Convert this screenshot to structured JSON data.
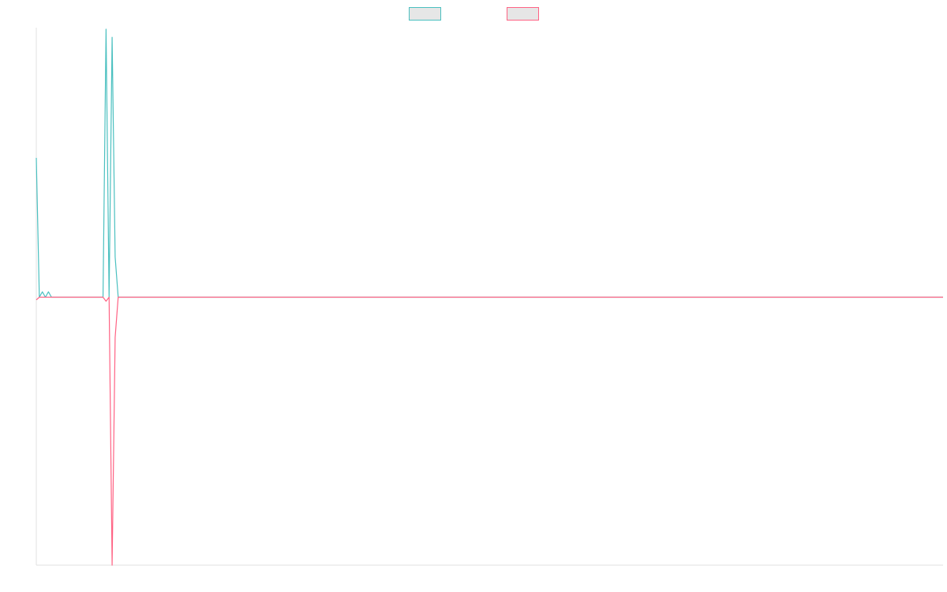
{
  "chart_data": {
    "type": "line",
    "title": "",
    "xlabel": "",
    "ylabel": "",
    "legend_position": "top-center",
    "grid": false,
    "x_count": 300,
    "ylim": [
      -1,
      1
    ],
    "series": [
      {
        "color": "#4bc0c0",
        "legend_fill": "#e6e6e6",
        "points": [
          [
            0,
            0.52
          ],
          [
            1,
            0.0
          ],
          [
            2,
            0.02
          ],
          [
            3,
            0.0
          ],
          [
            4,
            0.02
          ],
          [
            5,
            0.0
          ],
          [
            22,
            0.0
          ],
          [
            23,
            1.0
          ],
          [
            24,
            0.0
          ],
          [
            25,
            0.97
          ],
          [
            26,
            0.15
          ],
          [
            27,
            0.0
          ],
          [
            299,
            0.0
          ]
        ]
      },
      {
        "color": "#ff6384",
        "legend_fill": "#e6e6e6",
        "points": [
          [
            0,
            -0.01
          ],
          [
            1,
            0.0
          ],
          [
            22,
            0.0
          ],
          [
            23,
            -0.015
          ],
          [
            24,
            0.0
          ],
          [
            25,
            -1.0
          ],
          [
            26,
            -0.15
          ],
          [
            27,
            0.0
          ],
          [
            299,
            0.0
          ]
        ]
      }
    ]
  }
}
